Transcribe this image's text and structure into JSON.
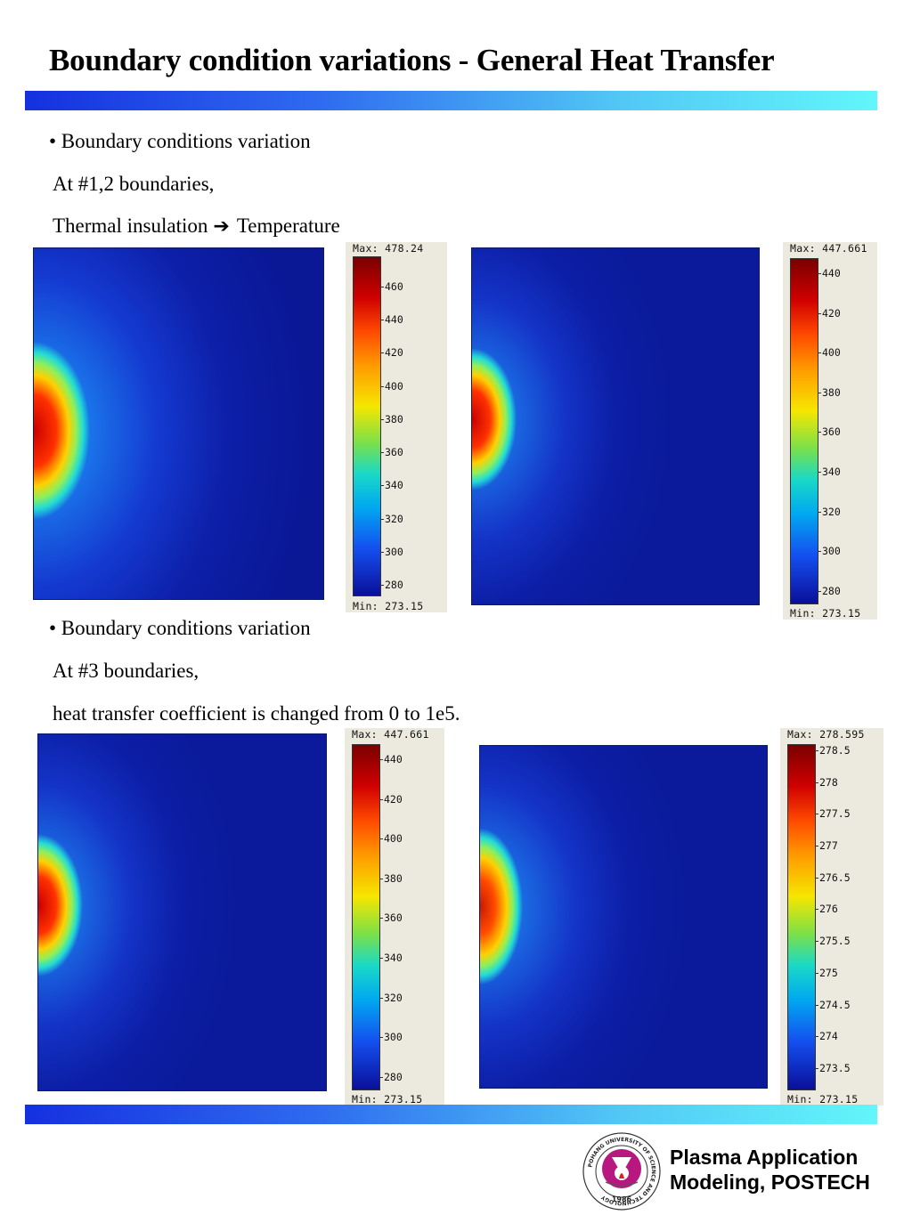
{
  "title": "Boundary condition variations - General Heat Transfer",
  "section1": {
    "bullet": "• Boundary conditions variation",
    "line2": "At #1,2 boundaries,",
    "line3_left": "Thermal insulation",
    "arrow": "➔",
    "line3_right": "Temperature"
  },
  "section2": {
    "bullet": "• Boundary conditions variation",
    "line2": "At #3 boundaries,",
    "line3": "heat transfer coefficient is changed from 0 to 1e5."
  },
  "colorbars": [
    {
      "max": "Max: 478.24",
      "min": "Min: 273.15",
      "ticks": [
        "460",
        "440",
        "420",
        "400",
        "380",
        "360",
        "340",
        "320",
        "300",
        "280"
      ]
    },
    {
      "max": "Max: 447.661",
      "min": "Min: 273.15",
      "ticks": [
        "440",
        "420",
        "400",
        "380",
        "360",
        "340",
        "320",
        "300",
        "280"
      ]
    },
    {
      "max": "Max: 447.661",
      "min": "Min: 273.15",
      "ticks": [
        "440",
        "420",
        "400",
        "380",
        "360",
        "340",
        "320",
        "300",
        "280"
      ]
    },
    {
      "max": "Max: 278.595",
      "min": "Min: 273.15",
      "ticks": [
        "278.5",
        "278",
        "277.5",
        "277",
        "276.5",
        "276",
        "275.5",
        "275",
        "274.5",
        "274",
        "273.5"
      ]
    }
  ],
  "footer": {
    "line1": "Plasma Application",
    "line2": "Modeling, POSTECH"
  },
  "logo": {
    "ring_text": "POHANG UNIVERSITY OF SCIENCE AND TECHNOLOGY",
    "year": "1986"
  },
  "colors": {
    "plot_background": "#0a1a9e",
    "hot": "#d40000",
    "accent_bar_start": "#1530e0",
    "accent_bar_end": "#62f6fb"
  }
}
